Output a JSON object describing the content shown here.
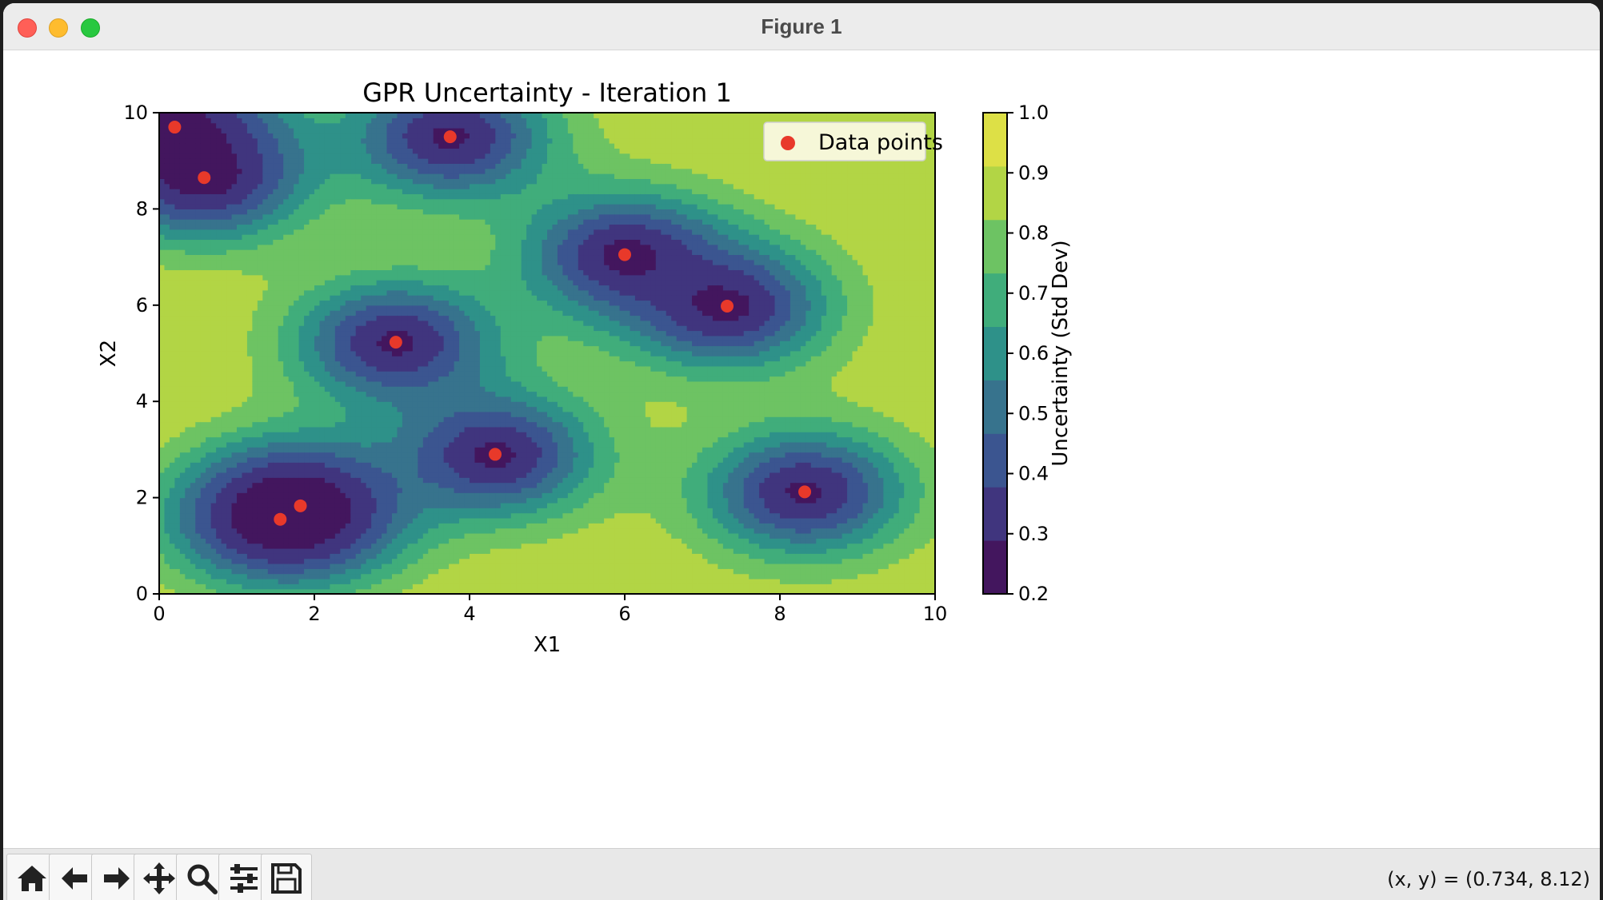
{
  "window": {
    "title": "Figure 1"
  },
  "toolbar": {
    "buttons": [
      {
        "name": "home-button",
        "icon": "home-icon"
      },
      {
        "name": "back-button",
        "icon": "arrow-left-icon"
      },
      {
        "name": "forward-button",
        "icon": "arrow-right-icon"
      },
      {
        "name": "pan-button",
        "icon": "move-icon"
      },
      {
        "name": "zoom-button",
        "icon": "magnifier-icon"
      },
      {
        "name": "configure-subplots-button",
        "icon": "sliders-icon"
      },
      {
        "name": "save-button",
        "icon": "floppy-disk-icon"
      }
    ],
    "coords": "(x, y) = (0.734, 8.12)"
  },
  "chart_data": {
    "type": "contourf",
    "title": "GPR Uncertainty - Iteration 1",
    "xlabel": "X1",
    "ylabel": "X2",
    "xlim": [
      0,
      10
    ],
    "ylim": [
      0,
      10
    ],
    "xticks": [
      "0",
      "2",
      "4",
      "6",
      "8",
      "10"
    ],
    "yticks": [
      "0",
      "2",
      "4",
      "6",
      "8",
      "10"
    ],
    "colorbar": {
      "label": "Uncertainty (Std Dev)",
      "ticks": [
        "0.2",
        "0.3",
        "0.4",
        "0.5",
        "0.6",
        "0.7",
        "0.8",
        "0.9",
        "1.0"
      ],
      "levels": [
        0.2,
        0.3,
        0.4,
        0.5,
        0.6,
        0.7,
        0.8,
        0.9,
        1.0
      ],
      "colors": [
        "#43165e",
        "#40357e",
        "#3b5590",
        "#37738d",
        "#2e9189",
        "#40ad7b",
        "#6dc363",
        "#b2d545",
        "#dde046"
      ]
    },
    "legend": {
      "label": "Data points",
      "position": "upper right",
      "color": "#e8392a"
    },
    "points": [
      {
        "x": 0.2,
        "y": 9.7
      },
      {
        "x": 0.58,
        "y": 8.65
      },
      {
        "x": 3.75,
        "y": 9.5
      },
      {
        "x": 6.0,
        "y": 7.05
      },
      {
        "x": 7.32,
        "y": 5.98
      },
      {
        "x": 3.05,
        "y": 5.23
      },
      {
        "x": 4.33,
        "y": 2.9
      },
      {
        "x": 1.82,
        "y": 1.83
      },
      {
        "x": 1.56,
        "y": 1.55
      },
      {
        "x": 8.32,
        "y": 2.12
      }
    ]
  }
}
